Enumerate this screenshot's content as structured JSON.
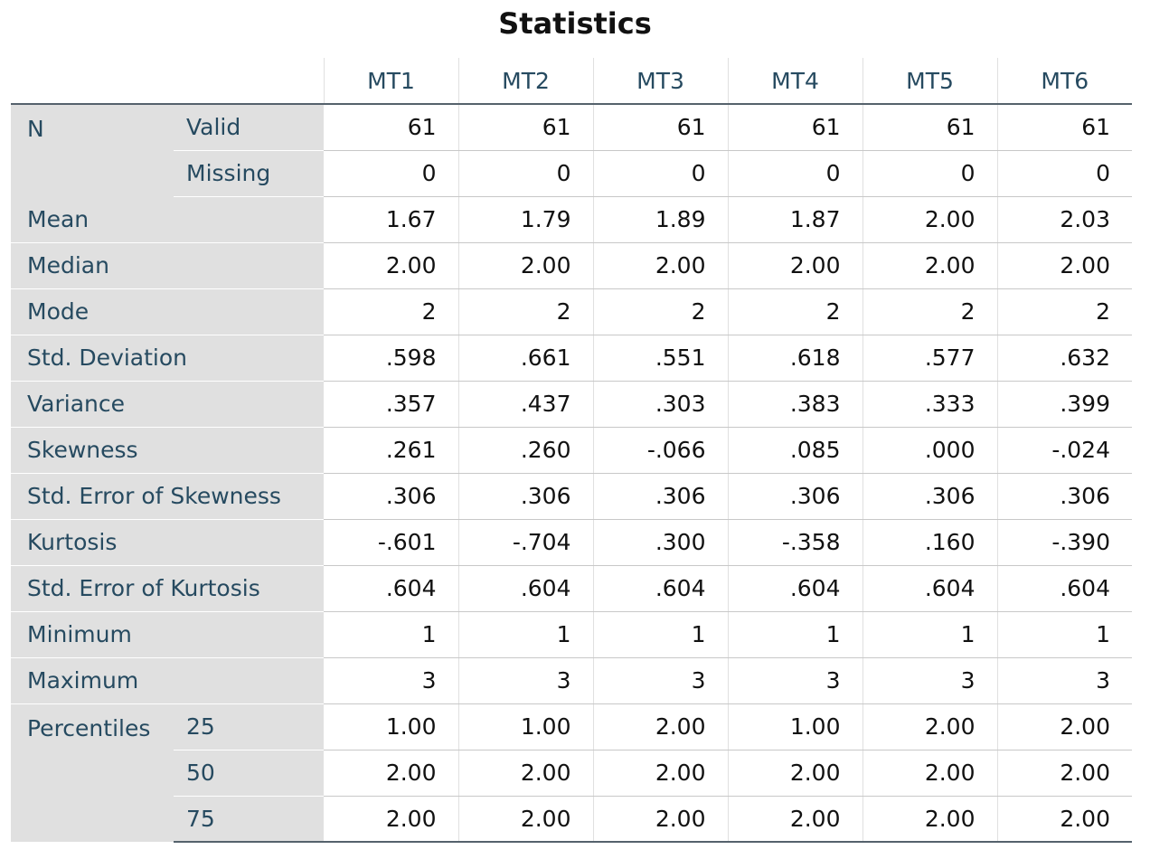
{
  "title": "Statistics",
  "columns": [
    "MT1",
    "MT2",
    "MT3",
    "MT4",
    "MT5",
    "MT6"
  ],
  "groups": {
    "n": "N",
    "percentiles": "Percentiles"
  },
  "rows": [
    {
      "label": "Valid",
      "values": [
        "61",
        "61",
        "61",
        "61",
        "61",
        "61"
      ]
    },
    {
      "label": "Missing",
      "values": [
        "0",
        "0",
        "0",
        "0",
        "0",
        "0"
      ]
    },
    {
      "label": "Mean",
      "values": [
        "1.67",
        "1.79",
        "1.89",
        "1.87",
        "2.00",
        "2.03"
      ]
    },
    {
      "label": "Median",
      "values": [
        "2.00",
        "2.00",
        "2.00",
        "2.00",
        "2.00",
        "2.00"
      ]
    },
    {
      "label": "Mode",
      "values": [
        "2",
        "2",
        "2",
        "2",
        "2",
        "2"
      ]
    },
    {
      "label": "Std. Deviation",
      "values": [
        ".598",
        ".661",
        ".551",
        ".618",
        ".577",
        ".632"
      ]
    },
    {
      "label": "Variance",
      "values": [
        ".357",
        ".437",
        ".303",
        ".383",
        ".333",
        ".399"
      ]
    },
    {
      "label": "Skewness",
      "values": [
        ".261",
        ".260",
        "-.066",
        ".085",
        ".000",
        "-.024"
      ]
    },
    {
      "label": "Std. Error of Skewness",
      "values": [
        ".306",
        ".306",
        ".306",
        ".306",
        ".306",
        ".306"
      ]
    },
    {
      "label": "Kurtosis",
      "values": [
        "-.601",
        "-.704",
        ".300",
        "-.358",
        ".160",
        "-.390"
      ]
    },
    {
      "label": "Std. Error of Kurtosis",
      "values": [
        ".604",
        ".604",
        ".604",
        ".604",
        ".604",
        ".604"
      ]
    },
    {
      "label": "Minimum",
      "values": [
        "1",
        "1",
        "1",
        "1",
        "1",
        "1"
      ]
    },
    {
      "label": "Maximum",
      "values": [
        "3",
        "3",
        "3",
        "3",
        "3",
        "3"
      ]
    },
    {
      "label": "25",
      "values": [
        "1.00",
        "1.00",
        "2.00",
        "1.00",
        "2.00",
        "2.00"
      ]
    },
    {
      "label": "50",
      "values": [
        "2.00",
        "2.00",
        "2.00",
        "2.00",
        "2.00",
        "2.00"
      ]
    },
    {
      "label": "75",
      "values": [
        "2.00",
        "2.00",
        "2.00",
        "2.00",
        "2.00",
        "2.00"
      ]
    }
  ]
}
